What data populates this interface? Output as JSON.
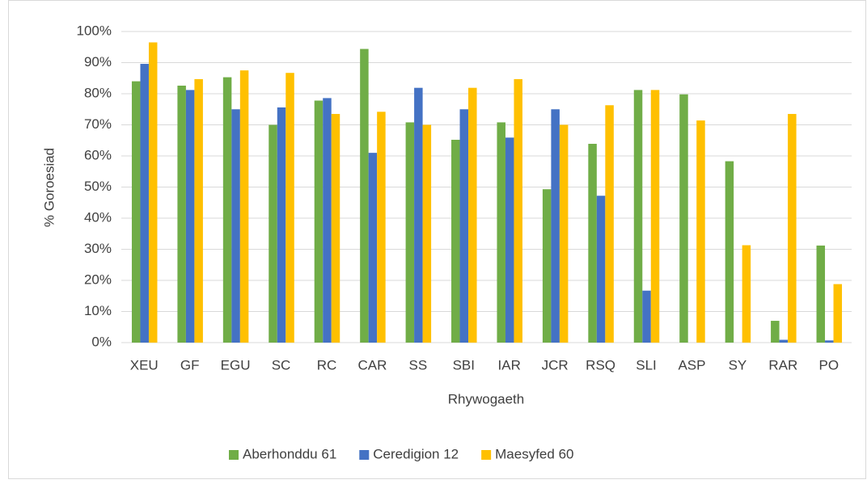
{
  "chart_data": {
    "type": "bar",
    "x_label": "Rhywogaeth",
    "y_label": "% Goroesiad",
    "categories": [
      "XEU",
      "GF",
      "EGU",
      "SC",
      "RC",
      "CAR",
      "SS",
      "SBI",
      "IAR",
      "JCR",
      "RSQ",
      "SLI",
      "ASP",
      "SY",
      "RAR",
      "PO"
    ],
    "series": [
      {
        "name": "Aberhonddu 61",
        "color": "#70ad47",
        "values": [
          84,
          82.6,
          85.3,
          70,
          77.8,
          94.4,
          70.8,
          65.2,
          70.8,
          49.3,
          63.9,
          81.2,
          79.8,
          58.3,
          7,
          31.2
        ]
      },
      {
        "name": "Ceredigion 12",
        "color": "#4472c4",
        "values": [
          89.6,
          81.2,
          75,
          75.6,
          78.6,
          61,
          81.9,
          75,
          65.9,
          75,
          47.2,
          16.7,
          0,
          0,
          0.9,
          0.7
        ]
      },
      {
        "name": "Maesyfed 60",
        "color": "#ffc000",
        "values": [
          96.5,
          84.7,
          87.5,
          86.7,
          73.5,
          74.2,
          70,
          81.9,
          84.7,
          70,
          76.3,
          81.2,
          71.4,
          31.3,
          73.5,
          18.8
        ]
      }
    ],
    "ylim": [
      0,
      100
    ],
    "yticks": [
      {
        "value": 0,
        "label": "0%"
      },
      {
        "value": 10,
        "label": "10%"
      },
      {
        "value": 20,
        "label": "20%"
      },
      {
        "value": 30,
        "label": "30%"
      },
      {
        "value": 40,
        "label": "40%"
      },
      {
        "value": 50,
        "label": "50%"
      },
      {
        "value": 60,
        "label": "60%"
      },
      {
        "value": 70,
        "label": "70%"
      },
      {
        "value": 80,
        "label": "80%"
      },
      {
        "value": 90,
        "label": "90%"
      },
      {
        "value": 100,
        "label": "100%"
      }
    ],
    "grid": true,
    "legend": "bottom"
  }
}
